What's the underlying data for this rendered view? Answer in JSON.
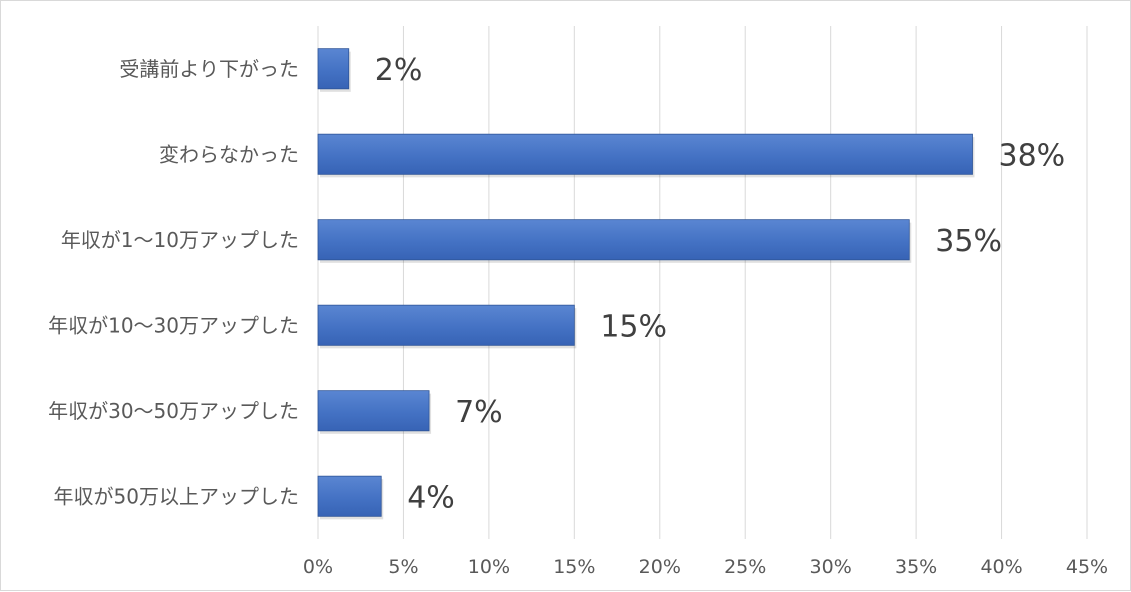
{
  "chart_data": {
    "type": "bar",
    "orientation": "horizontal",
    "title": "",
    "xlabel": "",
    "ylabel": "",
    "categories": [
      "受講前より下がった",
      "変わらなかった",
      "年収が1～10万アップした",
      "年収が10～30万アップした",
      "年収が30～50万アップした",
      "年収が50万以上アップした"
    ],
    "values": [
      1.8,
      38.3,
      34.6,
      15.0,
      6.5,
      3.7
    ],
    "data_labels": [
      "2%",
      "38%",
      "35%",
      "15%",
      "7%",
      "4%"
    ],
    "xlim": [
      0,
      45
    ],
    "x_ticks": [
      "0%",
      "5%",
      "10%",
      "15%",
      "20%",
      "25%",
      "30%",
      "35%",
      "40%",
      "45%"
    ],
    "grid": "vertical",
    "legend": "none",
    "colors": {
      "bar": "#4472c4",
      "bar_dark": "#2f5597",
      "grid": "#d9d9d9",
      "axis_text": "#595959",
      "label_text": "#404040"
    }
  }
}
